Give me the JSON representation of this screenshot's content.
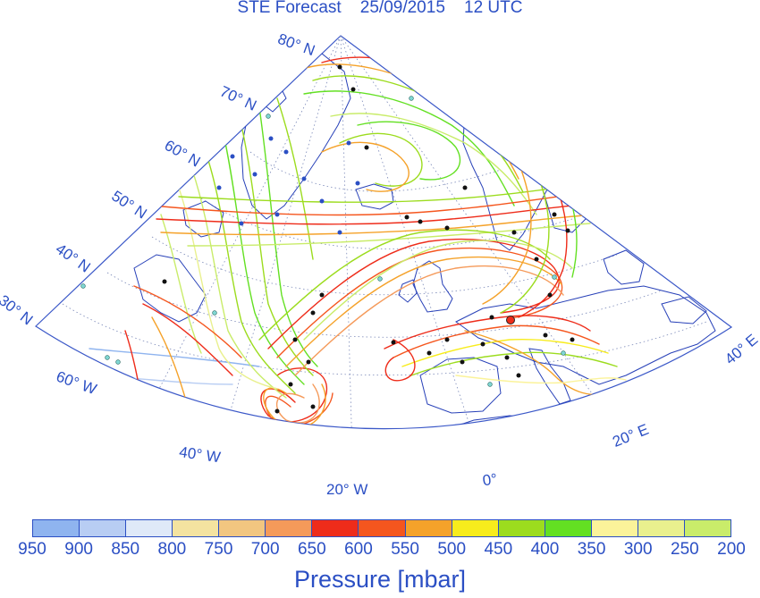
{
  "title": "STE Forecast    25/09/2015    12 UTC",
  "lat_labels": [
    "80° N",
    "70° N",
    "60° N",
    "50° N",
    "40° N",
    "30° N"
  ],
  "lon_labels": [
    "60° W",
    "40° W",
    "20° W",
    "0°",
    "20° E",
    "40° E"
  ],
  "colorbar": {
    "label": "Pressure [mbar]",
    "ticks": [
      "950",
      "900",
      "850",
      "800",
      "750",
      "700",
      "650",
      "600",
      "550",
      "500",
      "450",
      "400",
      "350",
      "300",
      "250",
      "200"
    ],
    "colors": [
      "#8fb4ef",
      "#b8cdf3",
      "#dfe9f8",
      "#f4e3a0",
      "#f2c680",
      "#f59a5a",
      "#ee2c1a",
      "#f5561e",
      "#f5a22a",
      "#f7ec1c",
      "#9cdc1e",
      "#63e022",
      "#fbf39a",
      "#e9f08e",
      "#c9ec6a"
    ]
  },
  "legend_icons": {
    "trajectory": "trajectory-line",
    "marker_black": "black-dot-marker",
    "marker_blue": "blue-dot-marker",
    "marker_cyan": "cyan-dot-marker",
    "highlight": "red-highlight-marker"
  }
}
